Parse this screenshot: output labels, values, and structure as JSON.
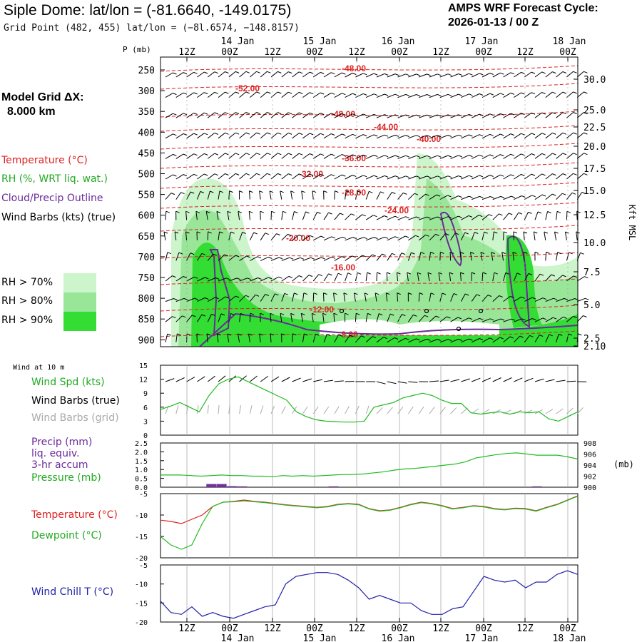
{
  "header": {
    "title": "Siple Dome:  lat/lon = (-81.6640, -149.0175)",
    "grid_point": "Grid Point (482, 455) lat/lon = (−8l.6574, −148.8157)",
    "cycle_label": "AMPS WRF Forecast Cycle:",
    "cycle_value": "2026-01-13 / 00  Z"
  },
  "left_panel": {
    "model_grid_label": "Model Grid ΔX:",
    "model_grid_value": "8.000 km",
    "temperature": "Temperature (°C)",
    "rh": "RH (%, WRT liq. wat.)",
    "cloud": "Cloud/Precip Outline",
    "wind_barbs": "Wind Barbs (kts) (true)",
    "rh70": "RH > 70%",
    "rh80": "RH > 80%",
    "rh90": "RH > 90%",
    "rh70_color": "#ccf5cc",
    "rh80_color": "#99e699",
    "rh90_color": "#33dd33"
  },
  "time_axis": {
    "top_hours": [
      "12Z",
      "00Z",
      "12Z",
      "00Z",
      "12Z",
      "00Z",
      "12Z",
      "00Z",
      "12Z",
      "00Z"
    ],
    "top_dates": [
      "14 Jan",
      "15 Jan",
      "16 Jan",
      "17 Jan",
      "18 Jan"
    ],
    "bottom_hours": [
      "12Z",
      "00Z",
      "12Z",
      "00Z",
      "12Z",
      "00Z",
      "12Z",
      "00Z",
      "12Z",
      "00Z"
    ],
    "bottom_dates": [
      "14 Jan",
      "15 Jan",
      "16 Jan",
      "17 Jan",
      "18 Jan"
    ]
  },
  "chart_data": [
    {
      "type": "line",
      "name": "cross-section",
      "ylabel": "P (mb)",
      "y2label": "Kft MSL",
      "pressure_levels": [
        "250",
        "300",
        "350",
        "400",
        "450",
        "500",
        "550",
        "600",
        "650",
        "700",
        "750",
        "800",
        "850",
        "900"
      ],
      "height_ticks": [
        "30.0",
        "25.0",
        "22.5",
        "20.0",
        "17.5",
        "15.0",
        "12.5",
        "10.0",
        "7.5",
        "5.0",
        "2.5",
        "2.10"
      ],
      "temperature_contour_labels": [
        "-48.00",
        "-52.00",
        "-48.00",
        "-44.00",
        "-40.00",
        "-36.00",
        "-32.00",
        "-28.00",
        "-24.00",
        "-20.00",
        "-16.00",
        "-12.00",
        "-8.00"
      ],
      "temperature_levels_c": [
        -52,
        -48,
        -44,
        -40,
        -36,
        -32,
        -28,
        -24,
        -20,
        -16,
        -12,
        -8
      ]
    },
    {
      "type": "line",
      "name": "wind-10m",
      "header": "Wind at 10 m",
      "labels": {
        "spd": "Wind Spd (kts)",
        "barbs_true": "Wind Barbs (true)",
        "barbs_grid": "Wind Barbs (grid)"
      },
      "y_ticks": [
        "15",
        "12",
        "9",
        "6",
        "3",
        "0"
      ],
      "ylim": [
        0,
        15
      ],
      "series": [
        {
          "name": "Wind Spd (kts)",
          "color": "#22bb22",
          "values": [
            5.5,
            6.2,
            7,
            6,
            5,
            8.5,
            11,
            12,
            12.5,
            11.5,
            10.5,
            9.5,
            8.5,
            7.5,
            5,
            4,
            3.3,
            3,
            2.9,
            2.8,
            2.8,
            3,
            6,
            6.5,
            7,
            8,
            8.5,
            9,
            8.5,
            7.5,
            6.8,
            6.8,
            4.8,
            4.5,
            4.8,
            5,
            4.5,
            5,
            4.8,
            5,
            3.5,
            3,
            4,
            5
          ]
        }
      ]
    },
    {
      "type": "line",
      "name": "precip-pressure",
      "labels": {
        "precip": "Precip (mm)",
        "liq": "liq. equiv.",
        "accum": "3-hr accum",
        "pressure": "Pressure (mb)"
      },
      "y_ticks": [
        "2.5",
        "2.0",
        "1.5",
        "1.0",
        "0.5",
        "0.0"
      ],
      "y2_ticks": [
        "908",
        "906",
        "904",
        "902",
        "900"
      ],
      "y2_unit": "(mb)",
      "ylim": [
        0,
        2.5
      ],
      "pressure_lim": [
        900,
        908
      ],
      "series": [
        {
          "name": "Pressure (mb)",
          "color": "#22bb22",
          "values": [
            902.2,
            902.2,
            902.2,
            902.1,
            902.0,
            902.1,
            902.2,
            902.1,
            902.1,
            902.0,
            902.0,
            901.9,
            902.1,
            902.0,
            902.1,
            902.0,
            902.1,
            902.2,
            902.3,
            902.3,
            902.4,
            902.6,
            902.8,
            903.1,
            903.3,
            903.4,
            903.6,
            903.8,
            904.0,
            904.2,
            904.6,
            905.3,
            905.6,
            905.9,
            906.1,
            906.2,
            906.0,
            905.8,
            905.8,
            905.8,
            905.5,
            905.1
          ]
        },
        {
          "name": "Precip (mm)",
          "color": "#7030a0",
          "values": [
            0,
            0,
            0,
            0,
            0,
            0.18,
            0.18,
            0.06,
            0.05,
            0,
            0,
            0,
            0,
            0,
            0,
            0,
            0,
            0.05,
            0,
            0,
            0,
            0,
            0,
            0,
            0,
            0,
            0,
            0,
            0,
            0,
            0,
            0,
            0,
            0,
            0,
            0,
            0,
            0.05,
            0,
            0,
            0,
            0
          ]
        }
      ]
    },
    {
      "type": "line",
      "name": "temperature-dewpoint",
      "labels": {
        "temp": "Temperature (°C)",
        "dew": "Dewpoint (°C)"
      },
      "y_ticks": [
        "-5",
        "-10",
        "-15",
        "-20"
      ],
      "ylim": [
        -20,
        -5
      ],
      "series": [
        {
          "name": "Temperature (°C)",
          "color": "#dd2222",
          "values": [
            -11.2,
            -11.5,
            -12,
            -11,
            -10,
            -8,
            -7,
            -6.8,
            -6.5,
            -6.8,
            -7,
            -7.3,
            -7.6,
            -7.8,
            -8,
            -8.2,
            -8,
            -7.5,
            -7.3,
            -7.5,
            -8.5,
            -9,
            -8.8,
            -8.2,
            -7.5,
            -7,
            -7.3,
            -7.8,
            -8.5,
            -8.2,
            -7.8,
            -8,
            -8.5,
            -8.7,
            -8.4,
            -8.5,
            -9,
            -8.2,
            -7.5,
            -6.5,
            -5.5
          ]
        },
        {
          "name": "Dewpoint (°C)",
          "color": "#22bb22",
          "values": [
            -15,
            -17,
            -18,
            -17,
            -12,
            -8,
            -7,
            -6.9,
            -6.7,
            -6.9,
            -7.1,
            -7.4,
            -7.7,
            -7.9,
            -8.1,
            -8.3,
            -8.1,
            -7.6,
            -7.4,
            -7.6,
            -8.6,
            -9.1,
            -8.9,
            -8.3,
            -7.6,
            -7.1,
            -7.4,
            -7.9,
            -8.6,
            -8.3,
            -7.9,
            -8.1,
            -8.6,
            -8.8,
            -8.5,
            -8.6,
            -9.1,
            -8.3,
            -7.6,
            -6.6,
            -5.6
          ]
        }
      ]
    },
    {
      "type": "line",
      "name": "wind-chill",
      "labels": {
        "chill": "Wind Chill T (°C)"
      },
      "y_ticks": [
        "-5",
        "-10",
        "-15",
        "-20"
      ],
      "ylim": [
        -20,
        -5
      ],
      "series": [
        {
          "name": "Wind Chill T (°C)",
          "color": "#2222aa",
          "values": [
            -14.5,
            -17.5,
            -18,
            -16,
            -18.5,
            -17.5,
            -18.5,
            -19,
            -18,
            -17,
            -16,
            -15.5,
            -10,
            -8,
            -7.5,
            -7,
            -7,
            -7.5,
            -9,
            -11,
            -14,
            -13,
            -14,
            -15,
            -15,
            -17,
            -18,
            -18,
            -16.5,
            -16,
            -12,
            -8,
            -9,
            -9.5,
            -9,
            -11,
            -9.5,
            -9.5,
            -7.5,
            -6.5,
            -7.5
          ]
        }
      ]
    }
  ]
}
